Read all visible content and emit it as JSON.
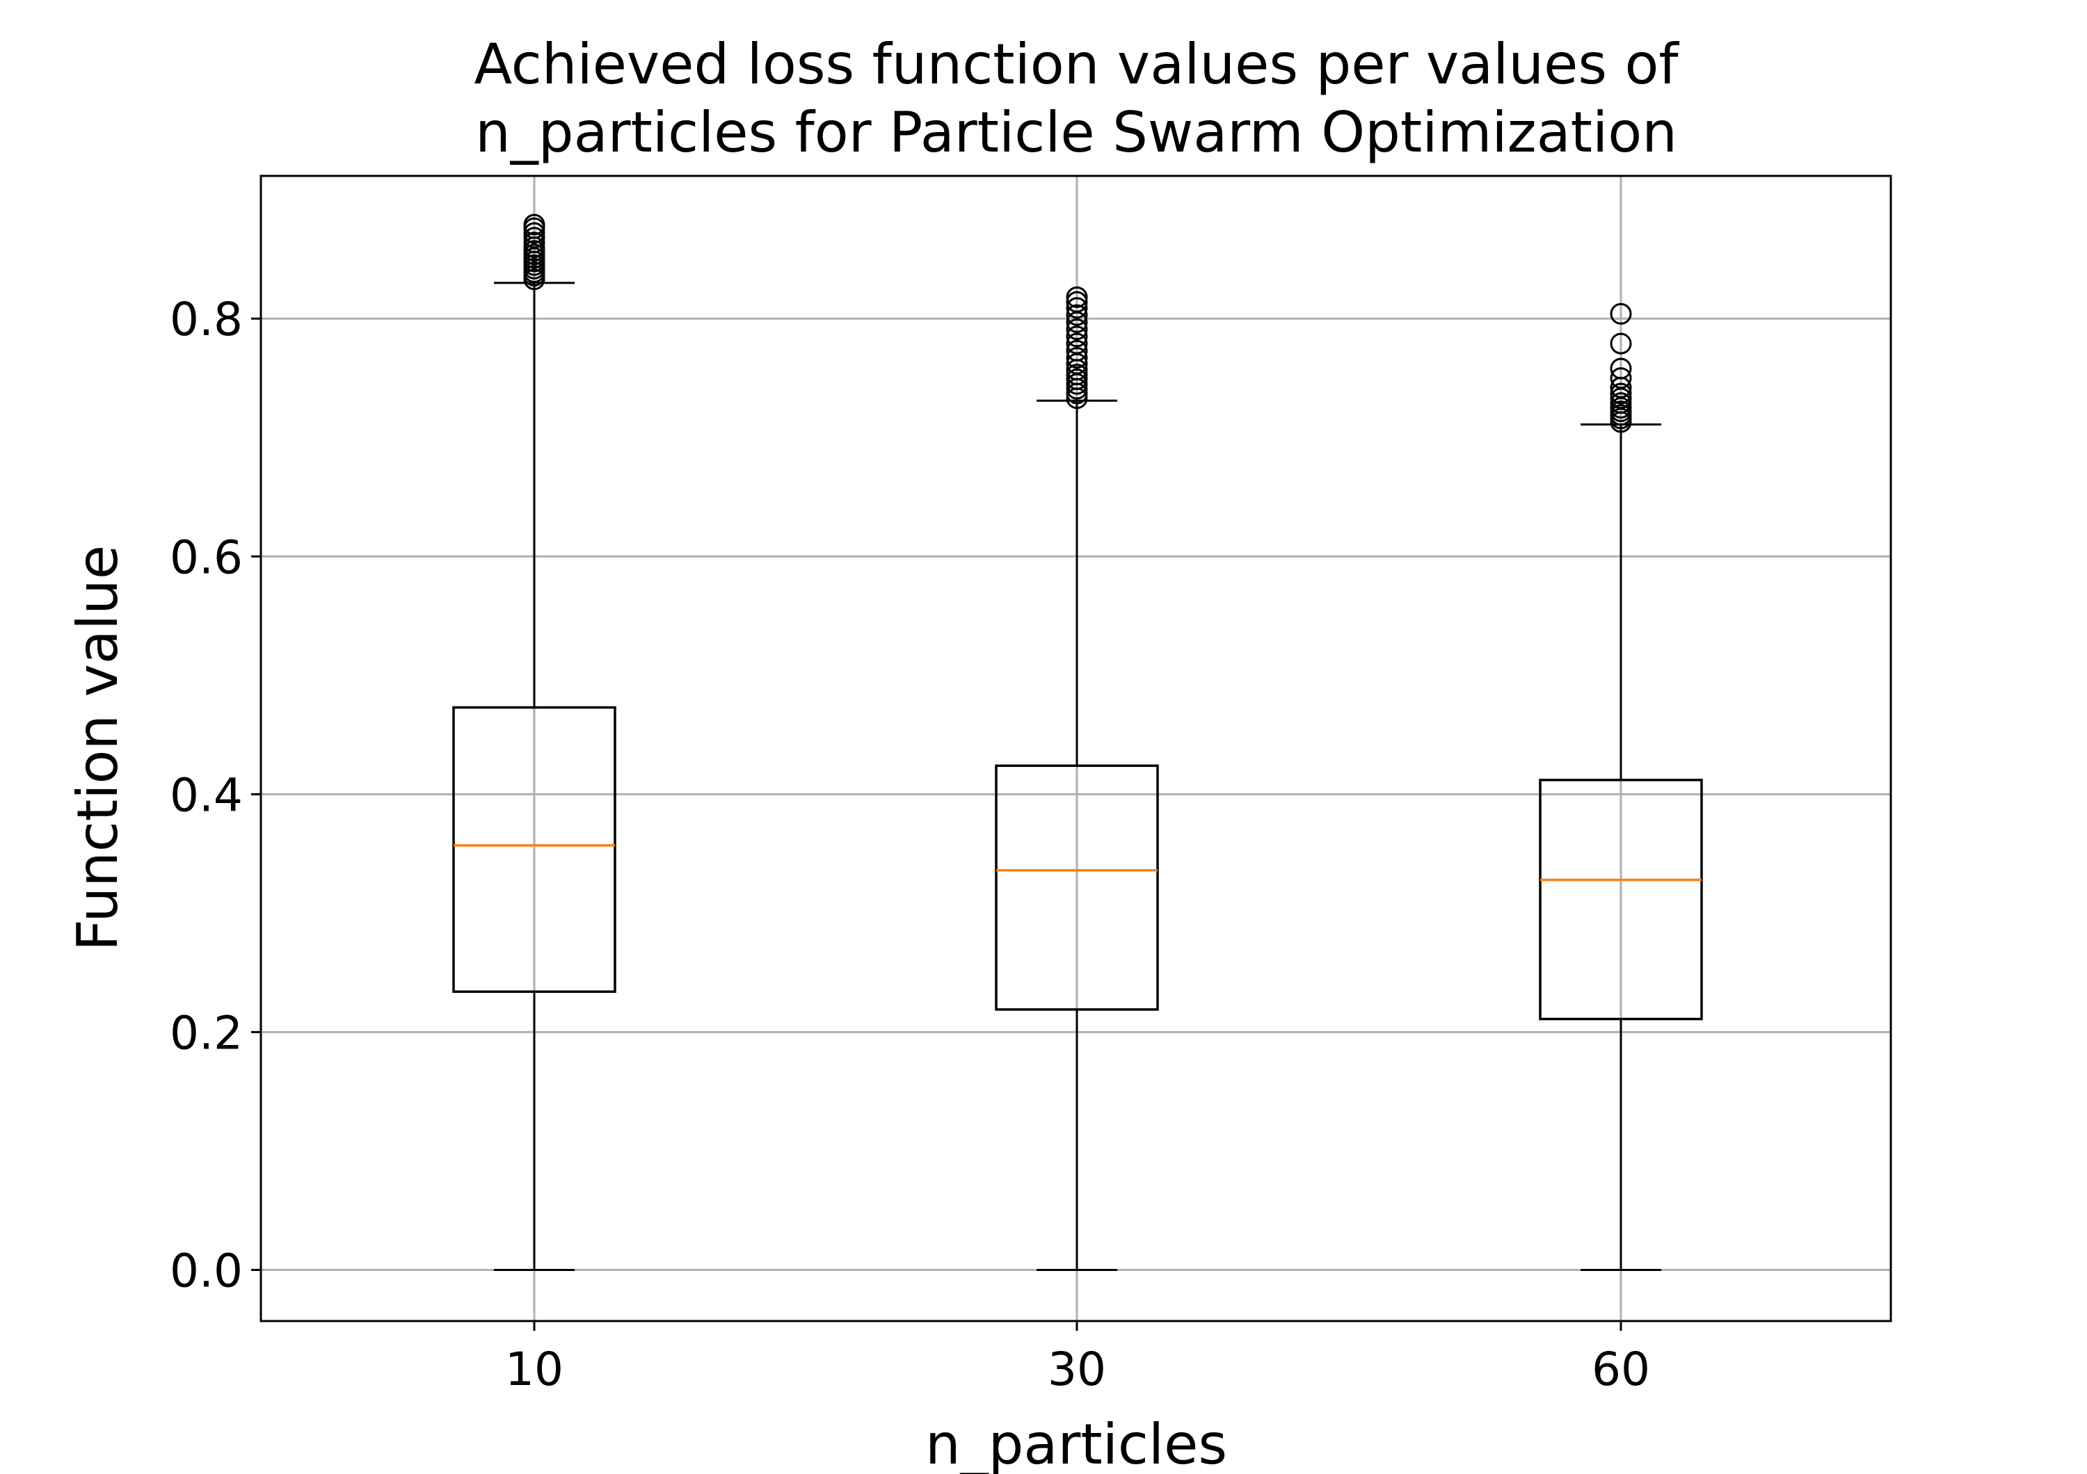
{
  "chart_data": {
    "type": "box",
    "title_line1": "Achieved loss function values per values of",
    "title_line2": "n_particles for Particle Swarm Optimization",
    "xlabel": "n_particles",
    "ylabel": "Function value",
    "categories": [
      "10",
      "30",
      "60"
    ],
    "ylim": [
      -0.043,
      0.92
    ],
    "yticks": [
      0.0,
      0.2,
      0.4,
      0.6,
      0.8
    ],
    "ytick_labels": [
      "0.0",
      "0.2",
      "0.4",
      "0.6",
      "0.8"
    ],
    "grid": true,
    "boxes": [
      {
        "category": "10",
        "whisker_low": 0.0,
        "q1": 0.234,
        "median": 0.357,
        "q3": 0.473,
        "whisker_high": 0.83,
        "outliers": [
          0.833,
          0.836,
          0.839,
          0.842,
          0.845,
          0.848,
          0.851,
          0.854,
          0.857,
          0.86,
          0.864,
          0.868,
          0.872,
          0.876,
          0.879
        ]
      },
      {
        "category": "30",
        "whisker_low": 0.0,
        "q1": 0.219,
        "median": 0.336,
        "q3": 0.424,
        "whisker_high": 0.731,
        "outliers": [
          0.733,
          0.737,
          0.741,
          0.745,
          0.749,
          0.753,
          0.757,
          0.762,
          0.767,
          0.773,
          0.779,
          0.785,
          0.791,
          0.797,
          0.803,
          0.809,
          0.814,
          0.818
        ]
      },
      {
        "category": "60",
        "whisker_low": 0.0,
        "q1": 0.211,
        "median": 0.328,
        "q3": 0.412,
        "whisker_high": 0.711,
        "outliers": [
          0.713,
          0.716,
          0.719,
          0.722,
          0.725,
          0.729,
          0.733,
          0.737,
          0.742,
          0.75,
          0.758,
          0.779,
          0.804
        ]
      }
    ],
    "colors": {
      "box": "#000000",
      "median": "#ff7f0e",
      "grid": "#b0b0b0",
      "background": "#ffffff"
    }
  }
}
